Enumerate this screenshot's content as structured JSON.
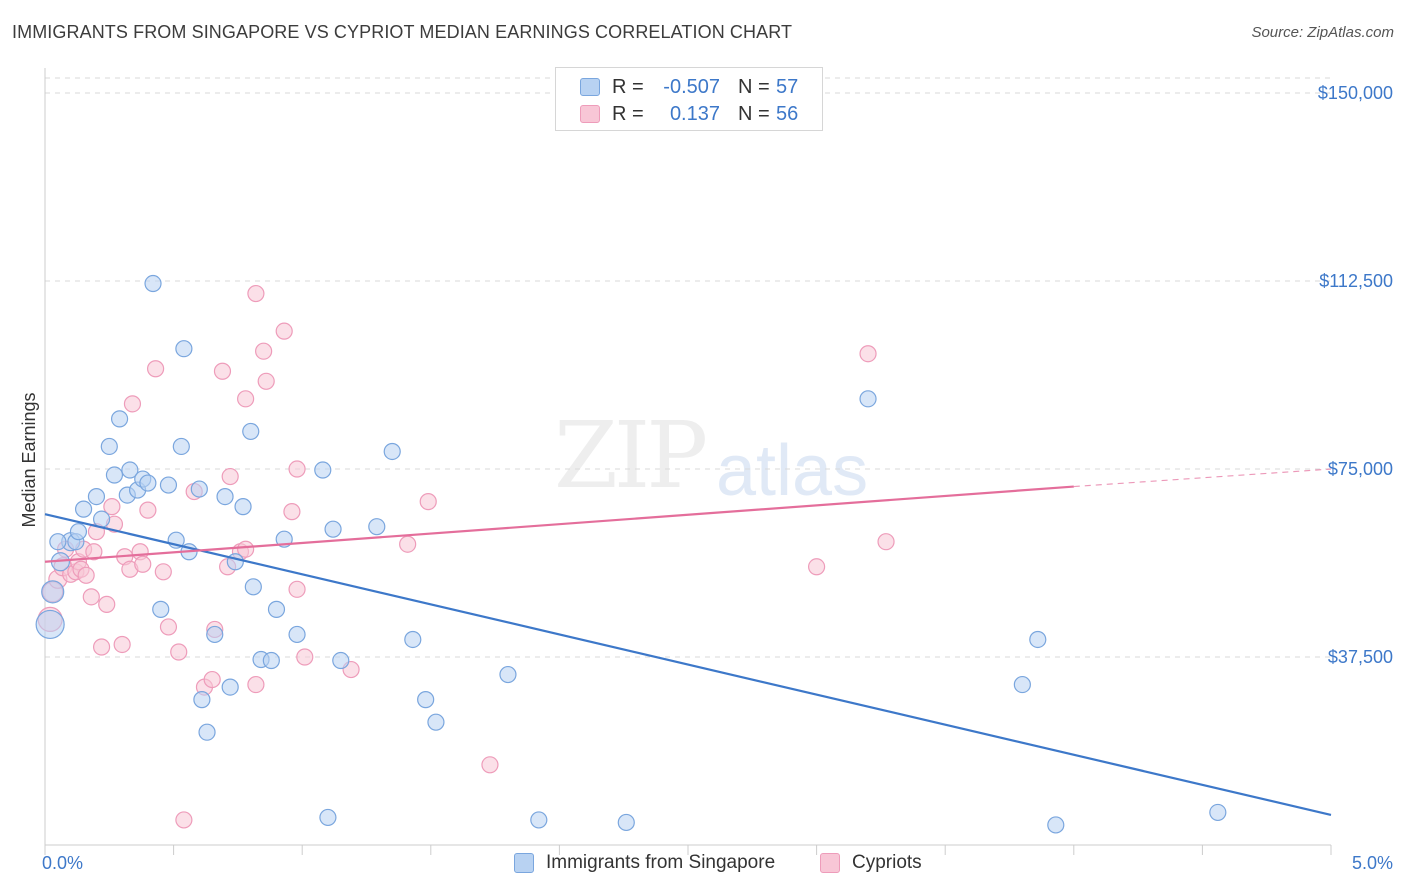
{
  "title": "IMMIGRANTS FROM SINGAPORE VS CYPRIOT MEDIAN EARNINGS CORRELATION CHART",
  "source": "Source: ZipAtlas.com",
  "watermark": {
    "zip": "ZIP",
    "atlas": "atlas"
  },
  "colors": {
    "blue": "#3d78c9",
    "blue_fill": "#b8d2f2",
    "blue_stroke": "#7aa6de",
    "pink": "#e46e9b",
    "pink_fill": "#f8c6d6",
    "pink_stroke": "#ee9cba",
    "grid": "#d9d9d9"
  },
  "legend": {
    "r_label": "R =",
    "n_label": "N =",
    "rows": [
      {
        "r": "-0.507",
        "n": "57"
      },
      {
        "r": "0.137",
        "n": "56"
      }
    ]
  },
  "bottom_legend": [
    "Immigrants from Singapore",
    "Cypriots"
  ],
  "chart_data": {
    "type": "scatter",
    "title": "IMMIGRANTS FROM SINGAPORE VS CYPRIOT MEDIAN EARNINGS CORRELATION CHART",
    "xlabel": "",
    "ylabel": "Median Earnings",
    "xlim": [
      0.0,
      5.0
    ],
    "ylim": [
      0,
      153000
    ],
    "x_tick_labels": [
      "0.0%",
      "5.0%"
    ],
    "y_ticks": [
      37500,
      75000,
      112500,
      150000
    ],
    "y_tick_labels": [
      "$37,500",
      "$75,000",
      "$112,500",
      "$150,000"
    ],
    "grid": true,
    "legend_position": "top-center",
    "series": [
      {
        "name": "Immigrants from Singapore",
        "color": "#3d78c9",
        "trend": {
          "x": [
            0.0,
            5.0
          ],
          "y": [
            66000,
            6000
          ]
        },
        "points": [
          [
            0.02,
            44000,
            14
          ],
          [
            0.03,
            50500,
            11
          ],
          [
            0.06,
            56500,
            9
          ],
          [
            0.1,
            60500,
            9
          ],
          [
            0.12,
            60500,
            8
          ],
          [
            0.13,
            62500,
            8
          ],
          [
            0.15,
            67000,
            8
          ],
          [
            0.2,
            69500,
            8
          ],
          [
            0.22,
            65000,
            8
          ],
          [
            0.25,
            79500,
            8
          ],
          [
            0.27,
            73800,
            8
          ],
          [
            0.29,
            85000,
            8
          ],
          [
            0.32,
            69800,
            8
          ],
          [
            0.33,
            74800,
            8
          ],
          [
            0.36,
            70800,
            8
          ],
          [
            0.38,
            73000,
            8
          ],
          [
            0.4,
            72200,
            8
          ],
          [
            0.42,
            112000,
            8
          ],
          [
            0.45,
            47000,
            8
          ],
          [
            0.48,
            71800,
            8
          ],
          [
            0.51,
            60800,
            8
          ],
          [
            0.53,
            79500,
            8
          ],
          [
            0.54,
            99000,
            8
          ],
          [
            0.56,
            58500,
            8
          ],
          [
            0.6,
            71000,
            8
          ],
          [
            0.61,
            29000,
            8
          ],
          [
            0.63,
            22500,
            8
          ],
          [
            0.66,
            42000,
            8
          ],
          [
            0.7,
            69500,
            8
          ],
          [
            0.72,
            31500,
            8
          ],
          [
            0.74,
            56500,
            8
          ],
          [
            0.77,
            67500,
            8
          ],
          [
            0.8,
            82500,
            8
          ],
          [
            0.81,
            51500,
            8
          ],
          [
            0.84,
            37000,
            8
          ],
          [
            0.88,
            36800,
            8
          ],
          [
            0.9,
            47000,
            8
          ],
          [
            0.93,
            61000,
            8
          ],
          [
            0.98,
            42000,
            8
          ],
          [
            1.08,
            74800,
            8
          ],
          [
            1.1,
            5500,
            8
          ],
          [
            1.12,
            63000,
            8
          ],
          [
            1.15,
            36800,
            8
          ],
          [
            1.29,
            63500,
            8
          ],
          [
            1.35,
            78500,
            8
          ],
          [
            1.43,
            41000,
            8
          ],
          [
            1.48,
            29000,
            8
          ],
          [
            1.52,
            24500,
            8
          ],
          [
            1.8,
            34000,
            8
          ],
          [
            1.92,
            5000,
            8
          ],
          [
            2.26,
            4500,
            8
          ],
          [
            3.2,
            89000,
            8
          ],
          [
            3.8,
            32000,
            8
          ],
          [
            3.86,
            41000,
            8
          ],
          [
            3.93,
            4000,
            8
          ],
          [
            4.56,
            6500,
            8
          ],
          [
            0.05,
            60500,
            8
          ]
        ]
      },
      {
        "name": "Cypriots",
        "color": "#e46e9b",
        "trend": {
          "x": [
            0.0,
            4.0
          ],
          "y": [
            56500,
            71500
          ]
        },
        "trend_dashed": {
          "x": [
            4.0,
            5.0
          ],
          "y": [
            71500,
            75000
          ]
        },
        "points": [
          [
            0.02,
            45000,
            12
          ],
          [
            0.03,
            50500,
            10
          ],
          [
            0.05,
            53000,
            9
          ],
          [
            0.07,
            55500,
            9
          ],
          [
            0.08,
            59000,
            8
          ],
          [
            0.1,
            54000,
            8
          ],
          [
            0.12,
            54500,
            8
          ],
          [
            0.13,
            56500,
            8
          ],
          [
            0.14,
            55000,
            8
          ],
          [
            0.15,
            59000,
            8
          ],
          [
            0.16,
            53800,
            8
          ],
          [
            0.18,
            49500,
            8
          ],
          [
            0.19,
            58500,
            8
          ],
          [
            0.2,
            62500,
            8
          ],
          [
            0.22,
            39500,
            8
          ],
          [
            0.24,
            48000,
            8
          ],
          [
            0.26,
            67500,
            8
          ],
          [
            0.27,
            64000,
            8
          ],
          [
            0.3,
            40000,
            8
          ],
          [
            0.31,
            57500,
            8
          ],
          [
            0.33,
            55000,
            8
          ],
          [
            0.34,
            88000,
            8
          ],
          [
            0.37,
            58500,
            8
          ],
          [
            0.38,
            56000,
            8
          ],
          [
            0.4,
            66800,
            8
          ],
          [
            0.43,
            95000,
            8
          ],
          [
            0.46,
            54500,
            8
          ],
          [
            0.48,
            43500,
            8
          ],
          [
            0.52,
            38500,
            8
          ],
          [
            0.54,
            5000,
            8
          ],
          [
            0.58,
            70500,
            8
          ],
          [
            0.62,
            31500,
            8
          ],
          [
            0.65,
            33000,
            8
          ],
          [
            0.66,
            43000,
            8
          ],
          [
            0.69,
            94500,
            8
          ],
          [
            0.71,
            55500,
            8
          ],
          [
            0.72,
            73500,
            8
          ],
          [
            0.76,
            58500,
            8
          ],
          [
            0.78,
            59000,
            8
          ],
          [
            0.78,
            89000,
            8
          ],
          [
            0.82,
            32000,
            8
          ],
          [
            0.82,
            110000,
            8
          ],
          [
            0.85,
            98500,
            8
          ],
          [
            0.86,
            92500,
            8
          ],
          [
            0.93,
            102500,
            8
          ],
          [
            0.96,
            66500,
            8
          ],
          [
            0.98,
            75000,
            8
          ],
          [
            0.98,
            51000,
            8
          ],
          [
            1.01,
            37500,
            8
          ],
          [
            1.19,
            35000,
            8
          ],
          [
            1.41,
            60000,
            8
          ],
          [
            1.49,
            68500,
            8
          ],
          [
            1.73,
            16000,
            8
          ],
          [
            3.0,
            55500,
            8
          ],
          [
            3.2,
            98000,
            8
          ],
          [
            3.27,
            60500,
            8
          ]
        ]
      }
    ]
  }
}
